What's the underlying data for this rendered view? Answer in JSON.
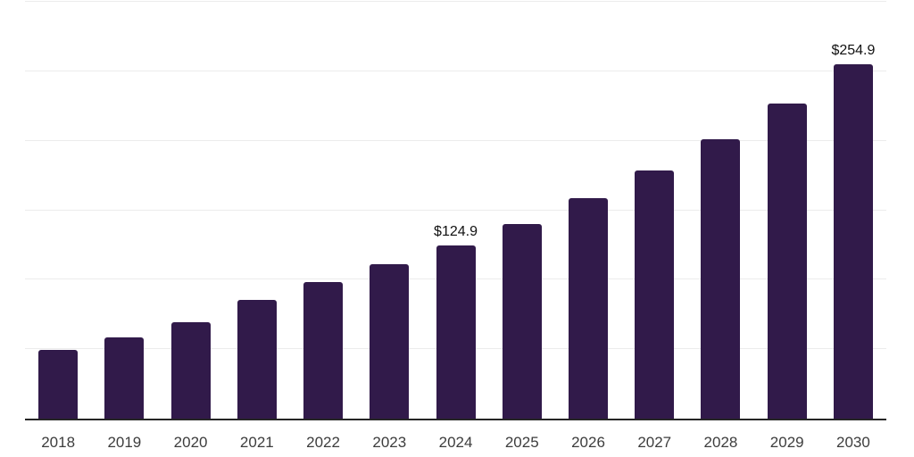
{
  "chart_data": {
    "type": "bar",
    "title": "",
    "categories": [
      "2018",
      "2019",
      "2020",
      "2021",
      "2022",
      "2023",
      "2024",
      "2025",
      "2026",
      "2027",
      "2028",
      "2029",
      "2030"
    ],
    "values": [
      49.6,
      58.2,
      69.3,
      85.5,
      98.4,
      111.0,
      124.9,
      140.1,
      158.8,
      178.5,
      201.0,
      226.6,
      254.9
    ],
    "value_labels": {
      "2024": "$124.9",
      "2030": "$254.9"
    },
    "labeled_points_note": "only 2024 and 2030 carry data labels; other values estimated from gridlines",
    "xlabel": "",
    "ylabel": "",
    "ylim": [
      0,
      300
    ],
    "gridline_values": [
      50,
      100,
      150,
      200,
      250,
      300
    ],
    "grid": true,
    "legend": "none",
    "colors": {
      "bar": "#311A4A",
      "gridline": "#ECECEC",
      "axis_line": "#262626",
      "tick_label": "#3D3D3D",
      "value_label": "#111111",
      "background": "#FFFFFF"
    }
  }
}
